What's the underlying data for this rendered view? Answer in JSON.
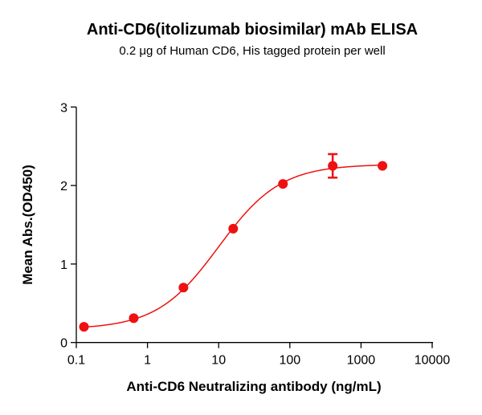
{
  "chart_data": {
    "type": "scatter",
    "title": "Anti-CD6(itolizumab biosimilar) mAb ELISA",
    "subtitle": "0.2 μg of Human CD6, His tagged protein per well",
    "xlabel": "Anti-CD6 Neutralizing antibody (ng/mL)",
    "ylabel": "Mean Abs.(OD450)",
    "xscale": "log",
    "xlim": [
      0.1,
      10000
    ],
    "ylim": [
      0,
      3
    ],
    "xticks": [
      "0.1",
      "1",
      "10",
      "100",
      "1000",
      "10000"
    ],
    "xtick_values": [
      0.1,
      1,
      10,
      100,
      1000,
      10000
    ],
    "yticks": [
      "0",
      "1",
      "2",
      "3"
    ],
    "ytick_values": [
      0,
      1,
      2,
      3
    ],
    "grid": false,
    "color": "#ee1111",
    "fit_curve": "sigmoidal (4PL)",
    "series": [
      {
        "x": [
          0.128,
          0.64,
          3.2,
          16,
          80,
          400,
          2000
        ],
        "y": [
          0.2,
          0.31,
          0.7,
          1.45,
          2.02,
          2.25,
          2.25
        ],
        "error": [
          0,
          0,
          0,
          0,
          0,
          0.15,
          0
        ]
      }
    ]
  }
}
